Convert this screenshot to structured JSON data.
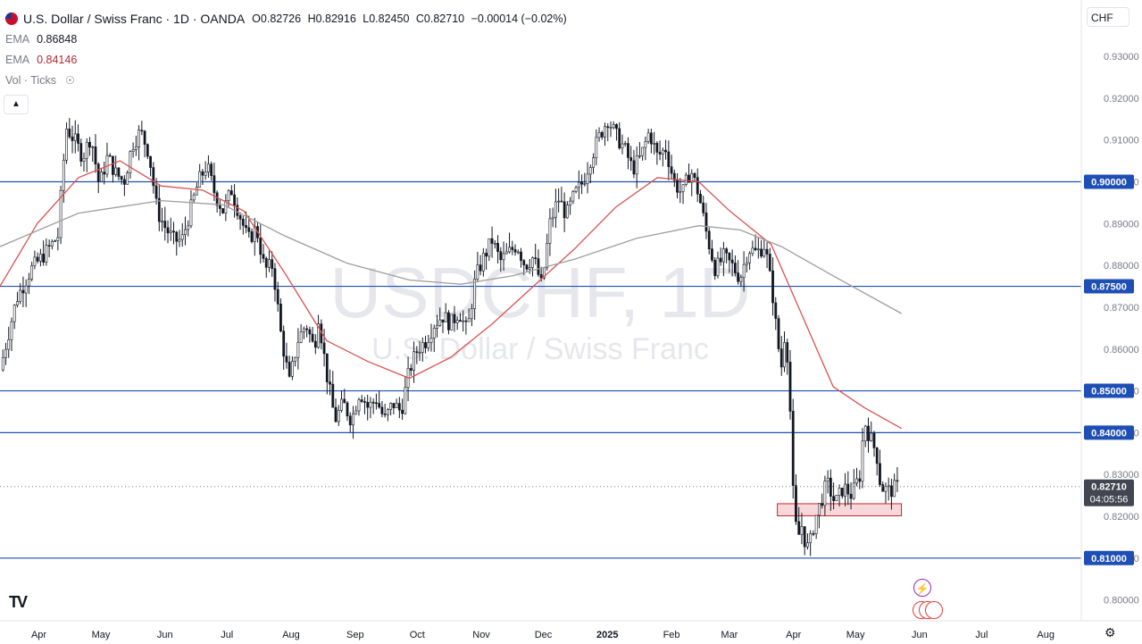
{
  "header": {
    "symbol_title": "U.S. Dollar / Swiss Franc · 1D · OANDA",
    "open_label": "O",
    "open_value": "0.82726",
    "high_label": "H",
    "high_value": "0.82916",
    "low_label": "L",
    "low_value": "0.82450",
    "close_label": "C",
    "close_value": "0.82710",
    "change": "−0.00014 (−0.02%)"
  },
  "indicators": {
    "ema_slow_label": "EMA",
    "ema_slow_value": "0.86848",
    "ema_fast_label": "EMA",
    "ema_fast_value": "0.84146",
    "volume_label": "Vol · Ticks"
  },
  "currency_button": "CHF",
  "watermark": {
    "line1": "USDCHF, 1D",
    "line2": "U.S. Dollar / Swiss Franc"
  },
  "colors": {
    "up": "#131722",
    "down": "#131722",
    "ema_fast": "#d9534f",
    "ema_slow": "#9e9e9e",
    "hline": "#1e4fb5",
    "zone_fill": "#f8d7da",
    "zone_border": "#c62828",
    "price_tag_dark": "#434651",
    "level_tag": "#1e4fb5"
  },
  "icons": {
    "logo": "tradingview-logo-icon",
    "settings": "gear-icon",
    "event1": "lightning-icon",
    "event2": "us-flag-icon",
    "collapse": "chevron-up-icon"
  },
  "chart_data": {
    "type": "candlestick",
    "title": "U.S. Dollar / Swiss Franc · 1D · OANDA",
    "xlabel": "",
    "ylabel": "",
    "ylim": [
      0.795,
      0.9375
    ],
    "y_ticks": [
      "0.93000",
      "0.92000",
      "0.91000",
      "0.90000",
      "0.89000",
      "0.88000",
      "0.87000",
      "0.86000",
      "0.85000",
      "0.84000",
      "0.83000",
      "0.82000",
      "0.81000",
      "0.80000"
    ],
    "x_ticks": [
      {
        "label": "Apr",
        "x": 0
      },
      {
        "label": "May",
        "x": 30
      },
      {
        "label": "Jun",
        "x": 61
      },
      {
        "label": "Jul",
        "x": 91
      },
      {
        "label": "Aug",
        "x": 122
      },
      {
        "label": "Sep",
        "x": 153
      },
      {
        "label": "Oct",
        "x": 183
      },
      {
        "label": "Nov",
        "x": 214
      },
      {
        "label": "Dec",
        "x": 244
      },
      {
        "label": "2025",
        "x": 275
      },
      {
        "label": "Feb",
        "x": 306
      },
      {
        "label": "Mar",
        "x": 334
      },
      {
        "label": "Apr",
        "x": 365
      },
      {
        "label": "May",
        "x": 395
      },
      {
        "label": "Jun",
        "x": 426
      },
      {
        "label": "Jul",
        "x": 456
      },
      {
        "label": "Aug",
        "x": 487
      }
    ],
    "x_range": [
      -8,
      515
    ],
    "close_path": [
      [
        -8,
        0.855
      ],
      [
        0,
        0.872
      ],
      [
        7,
        0.879
      ],
      [
        14,
        0.883
      ],
      [
        20,
        0.887
      ],
      [
        24,
        0.913
      ],
      [
        28,
        0.91
      ],
      [
        32,
        0.906
      ],
      [
        36,
        0.911
      ],
      [
        40,
        0.899
      ],
      [
        44,
        0.906
      ],
      [
        48,
        0.902
      ],
      [
        52,
        0.9
      ],
      [
        56,
        0.909
      ],
      [
        60,
        0.912
      ],
      [
        64,
        0.907
      ],
      [
        68,
        0.893
      ],
      [
        72,
        0.889
      ],
      [
        76,
        0.886
      ],
      [
        80,
        0.886
      ],
      [
        84,
        0.893
      ],
      [
        88,
        0.9
      ],
      [
        92,
        0.904
      ],
      [
        96,
        0.897
      ],
      [
        100,
        0.893
      ],
      [
        104,
        0.898
      ],
      [
        108,
        0.892
      ],
      [
        112,
        0.886
      ],
      [
        116,
        0.889
      ],
      [
        120,
        0.879
      ],
      [
        124,
        0.88
      ],
      [
        128,
        0.863
      ],
      [
        132,
        0.852
      ],
      [
        136,
        0.862
      ],
      [
        140,
        0.866
      ],
      [
        144,
        0.86
      ],
      [
        146,
        0.868
      ],
      [
        150,
        0.854
      ],
      [
        154,
        0.843
      ],
      [
        158,
        0.847
      ],
      [
        162,
        0.843
      ],
      [
        166,
        0.85
      ],
      [
        170,
        0.846
      ],
      [
        174,
        0.848
      ],
      [
        178,
        0.843
      ],
      [
        182,
        0.847
      ],
      [
        186,
        0.845
      ],
      [
        190,
        0.855
      ],
      [
        194,
        0.86
      ],
      [
        198,
        0.862
      ],
      [
        202,
        0.866
      ],
      [
        206,
        0.868
      ],
      [
        210,
        0.866
      ],
      [
        214,
        0.869
      ],
      [
        218,
        0.864
      ],
      [
        222,
        0.877
      ],
      [
        226,
        0.882
      ],
      [
        230,
        0.886
      ],
      [
        234,
        0.881
      ],
      [
        238,
        0.883
      ],
      [
        242,
        0.885
      ],
      [
        246,
        0.88
      ],
      [
        250,
        0.882
      ],
      [
        254,
        0.875
      ],
      [
        258,
        0.89
      ],
      [
        262,
        0.896
      ],
      [
        266,
        0.892
      ],
      [
        270,
        0.897
      ],
      [
        274,
        0.9
      ],
      [
        278,
        0.906
      ],
      [
        282,
        0.911
      ],
      [
        286,
        0.915
      ],
      [
        290,
        0.911
      ],
      [
        294,
        0.908
      ],
      [
        298,
        0.903
      ],
      [
        302,
        0.906
      ],
      [
        306,
        0.912
      ],
      [
        310,
        0.906
      ],
      [
        314,
        0.908
      ],
      [
        318,
        0.9
      ],
      [
        322,
        0.897
      ],
      [
        326,
        0.903
      ],
      [
        330,
        0.897
      ],
      [
        334,
        0.887
      ],
      [
        338,
        0.879
      ],
      [
        342,
        0.882
      ],
      [
        346,
        0.88
      ],
      [
        350,
        0.877
      ],
      [
        354,
        0.884
      ],
      [
        358,
        0.883
      ],
      [
        362,
        0.885
      ],
      [
        366,
        0.872
      ],
      [
        368,
        0.862
      ],
      [
        370,
        0.856
      ],
      [
        372,
        0.866
      ],
      [
        374,
        0.848
      ],
      [
        376,
        0.82
      ],
      [
        378,
        0.815
      ],
      [
        380,
        0.818
      ],
      [
        382,
        0.812
      ],
      [
        384,
        0.814
      ],
      [
        386,
        0.819
      ],
      [
        388,
        0.822
      ],
      [
        392,
        0.828
      ],
      [
        396,
        0.823
      ],
      [
        400,
        0.827
      ],
      [
        404,
        0.825
      ],
      [
        408,
        0.83
      ],
      [
        410,
        0.843
      ],
      [
        412,
        0.84
      ],
      [
        416,
        0.835
      ],
      [
        418,
        0.827
      ],
      [
        422,
        0.826
      ],
      [
        426,
        0.827
      ]
    ],
    "series": [
      {
        "name": "EMA 0.84146",
        "kind": "ema_fast",
        "points": [
          [
            -8,
            0.875
          ],
          [
            10,
            0.89
          ],
          [
            30,
            0.901
          ],
          [
            50,
            0.905
          ],
          [
            70,
            0.899
          ],
          [
            90,
            0.898
          ],
          [
            110,
            0.893
          ],
          [
            130,
            0.878
          ],
          [
            150,
            0.862
          ],
          [
            170,
            0.857
          ],
          [
            190,
            0.853
          ],
          [
            210,
            0.858
          ],
          [
            230,
            0.866
          ],
          [
            250,
            0.875
          ],
          [
            270,
            0.884
          ],
          [
            290,
            0.894
          ],
          [
            310,
            0.901
          ],
          [
            330,
            0.9
          ],
          [
            345,
            0.893
          ],
          [
            365,
            0.885
          ],
          [
            380,
            0.868
          ],
          [
            395,
            0.851
          ],
          [
            410,
            0.846
          ],
          [
            428,
            0.841
          ]
        ]
      },
      {
        "name": "EMA 0.86848",
        "kind": "ema_slow",
        "points": [
          [
            -8,
            0.8845
          ],
          [
            30,
            0.8925
          ],
          [
            70,
            0.8955
          ],
          [
            100,
            0.8945
          ],
          [
            130,
            0.887
          ],
          [
            160,
            0.8805
          ],
          [
            190,
            0.8765
          ],
          [
            215,
            0.8755
          ],
          [
            240,
            0.8775
          ],
          [
            270,
            0.8815
          ],
          [
            300,
            0.8865
          ],
          [
            330,
            0.8895
          ],
          [
            350,
            0.8885
          ],
          [
            370,
            0.8845
          ],
          [
            395,
            0.8775
          ],
          [
            428,
            0.8685
          ]
        ]
      }
    ],
    "horizontal_levels": [
      "0.90000",
      "0.87500",
      "0.85000",
      "0.84000",
      "0.81000"
    ],
    "support_zone": {
      "from": 0.8201,
      "to": 0.823,
      "x_start": 368,
      "x_end": 428
    },
    "last_price": "0.82710",
    "countdown": "04:05:56"
  }
}
